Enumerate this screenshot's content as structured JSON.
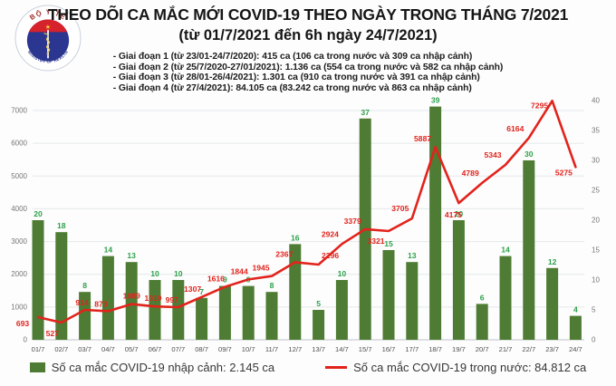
{
  "header": {
    "logo": {
      "top_text": "BỘ Y TẾ",
      "bottom_text": "MINISTRY OF HEALTH"
    },
    "title": "THEO DÕI CA MẮC MỚI COVID-19 THEO NGÀY TRONG THÁNG 7/2021",
    "subtitle": "(từ 01/7/2021 đến 6h ngày 24/7/2021)",
    "bullets": [
      "- Giai đoạn 1 (từ 23/01-24/7/2020): 415 ca (106 ca trong nước và 309 ca nhập cảnh)",
      "- Giai đoạn 2 (từ 25/7/2020-27/01/2021): 1.136 ca (554 ca trong nước và 582 ca nhập cảnh)",
      "- Giai đoạn 3 (từ 28/01-26/4/2021): 1.301 ca (910 ca trong nước và 391 ca nhập cảnh)",
      "- Giai đoạn 4 (từ 27/4/2021): 84.105 ca (83.242 ca trong nước và 863 ca nhập cảnh)"
    ]
  },
  "chart_data": {
    "type": "bar",
    "combo": "bar+line",
    "title": "THEO DÕI CA MẮC MỚI COVID-19 THEO NGÀY TRONG THÁNG 7/2021",
    "categories": [
      "01/7",
      "02/7",
      "03/7",
      "04/7",
      "05/7",
      "06/7",
      "07/7",
      "08/7",
      "09/7",
      "10/7",
      "11/7",
      "12/7",
      "13/7",
      "14/7",
      "15/7",
      "16/7",
      "17/7",
      "18/7",
      "19/7",
      "20/7",
      "21/7",
      "22/7",
      "23/7",
      "24/7"
    ],
    "series": [
      {
        "name": "Số ca mắc COVID-19 nhập cảnh",
        "type": "bar",
        "axis": "right",
        "color": "#4e7c34",
        "label_color": "#2da14b",
        "values": [
          20,
          18,
          8,
          14,
          13,
          10,
          10,
          7,
          9,
          9,
          8,
          16,
          5,
          10,
          37,
          15,
          13,
          39,
          20,
          6,
          14,
          30,
          12,
          4
        ]
      },
      {
        "name": "Số ca mắc COVID-19 trong nước",
        "type": "line",
        "axis": "left",
        "color": "#e2231c",
        "label_color": "#e2231c",
        "values": [
          693,
          527,
          914,
          873,
          1089,
          1019,
          997,
          1307,
          1616,
          1844,
          1945,
          2367,
          2296,
          2924,
          3379,
          3321,
          3705,
          5887,
          4175,
          4789,
          5343,
          6164,
          7295,
          5275
        ]
      }
    ],
    "left_axis": {
      "min": 0,
      "max": 7000,
      "step": 1000
    },
    "right_axis": {
      "min": 0,
      "max": 40,
      "step": 5
    },
    "grid": true,
    "legend_position": "bottom"
  },
  "legend": {
    "items": [
      {
        "swatch": "bar",
        "color": "#4e7c34",
        "label": "Số ca mắc COVID-19 nhập cảnh: 2.145 ca"
      },
      {
        "swatch": "line",
        "color": "#e2231c",
        "label": "Số ca mắc COVID-19 trong nước: 84.812 ca"
      }
    ]
  },
  "colors": {
    "bar": "#4e7c34",
    "bar_label": "#2da14b",
    "line": "#e2231c",
    "grid": "#e4e8ea",
    "axis_line": "#bfc4c9",
    "axis_text": "#767676",
    "title_text": "#151515",
    "logo_navy": "#2a3690",
    "logo_red": "#d6232b",
    "logo_gold": "#f7c938"
  }
}
